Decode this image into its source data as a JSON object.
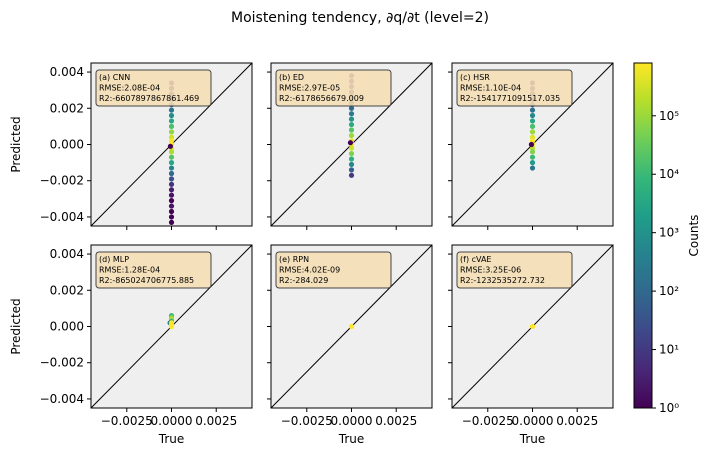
{
  "chart_data": {
    "type": "scatter",
    "title": "Moistening tendency, ∂q/∂t (level=2)",
    "xlabel": "True",
    "ylabel": "Predicted",
    "xlim": [
      -0.0045,
      0.0045
    ],
    "ylim": [
      -0.0045,
      0.0045
    ],
    "x_ticks": [
      -0.0025,
      0.0,
      0.0025
    ],
    "x_tick_labels": [
      "−0.0025",
      "0.0000",
      "0.0025"
    ],
    "y_ticks": [
      -0.004,
      -0.002,
      0.0,
      0.002,
      0.004
    ],
    "y_tick_labels": [
      "−0.004",
      "−0.002",
      "0.000",
      "0.002",
      "0.004"
    ],
    "colorbar": {
      "label": "Counts",
      "scale": "log",
      "range": [
        1,
        800000
      ],
      "colors": [
        "#440154",
        "#482878",
        "#3e4989",
        "#31688e",
        "#26828e",
        "#1f9e89",
        "#35b779",
        "#6ece58",
        "#b5de2b",
        "#fde725"
      ],
      "ticks": [
        {
          "value": 1,
          "label": "10⁰"
        },
        {
          "value": 10,
          "label": "10¹"
        },
        {
          "value": 100,
          "label": "10²"
        },
        {
          "value": 1000,
          "label": "10³"
        },
        {
          "value": 10000,
          "label": "10⁴"
        },
        {
          "value": 100000,
          "label": "10⁵"
        }
      ]
    },
    "panels": [
      {
        "id": "cnn",
        "name": "(a) CNN",
        "rmse": "RMSE:2.08E-04",
        "r2": "R2:-6607897867861.469",
        "points": [
          [
            0.0,
            0.0034,
            3
          ],
          [
            0.0,
            0.0031,
            3
          ],
          [
            0.0,
            0.0028,
            5
          ],
          [
            0.0,
            0.0025,
            20
          ],
          [
            0.0,
            0.0022,
            60
          ],
          [
            0.0,
            0.0019,
            200
          ],
          [
            0.0,
            0.0016,
            800
          ],
          [
            0.0,
            0.0013,
            3000
          ],
          [
            0.0,
            0.001,
            15000
          ],
          [
            0.0,
            0.0007,
            80000
          ],
          [
            0.0,
            0.0004,
            300000
          ],
          [
            0.0,
            0.0002,
            700000
          ],
          [
            0.0,
            0.0,
            800000
          ],
          [
            0.0,
            -0.0002,
            500000
          ],
          [
            0.0,
            -0.0004,
            150000
          ],
          [
            -6e-05,
            -0.0001,
            1
          ],
          [
            0.0,
            -0.0007,
            20000
          ],
          [
            0.0,
            -0.001,
            3000
          ],
          [
            0.0,
            -0.0013,
            500
          ],
          [
            0.0,
            -0.0016,
            100
          ],
          [
            0.0,
            -0.0019,
            30
          ],
          [
            0.0,
            -0.0022,
            8
          ],
          [
            0.0,
            -0.0025,
            3
          ],
          [
            0.0,
            -0.0028,
            2
          ],
          [
            0.0,
            -0.0031,
            1
          ],
          [
            0.0,
            -0.0034,
            2
          ],
          [
            0.0,
            -0.0037,
            1
          ],
          [
            0.0,
            -0.004,
            1
          ],
          [
            0.0,
            -0.0043,
            1
          ]
        ]
      },
      {
        "id": "ed",
        "name": "(b) ED",
        "rmse": "RMSE:2.97E-05",
        "r2": "R2:-6178656679.009",
        "points": [
          [
            0.0,
            0.0038,
            4
          ],
          [
            0.0,
            0.0035,
            4
          ],
          [
            0.0,
            0.0032,
            6
          ],
          [
            0.0,
            0.0029,
            10
          ],
          [
            0.0,
            0.0026,
            20
          ],
          [
            0.0,
            0.0023,
            40
          ],
          [
            0.0,
            0.002,
            100
          ],
          [
            0.0,
            0.0017,
            300
          ],
          [
            0.0,
            0.0014,
            1000
          ],
          [
            0.0,
            0.0011,
            4000
          ],
          [
            0.0,
            0.0008,
            20000
          ],
          [
            0.0,
            0.0005,
            100000
          ],
          [
            0.0,
            0.0002,
            500000
          ],
          [
            0.0,
            0.0,
            800000
          ],
          [
            0.0,
            -0.0002,
            300000
          ],
          [
            -6e-05,
            0.0001,
            1
          ],
          [
            0.0,
            -0.0005,
            50000
          ],
          [
            0.0,
            -0.0008,
            5000
          ],
          [
            0.0,
            -0.0011,
            500
          ],
          [
            0.0,
            -0.0014,
            60
          ],
          [
            0.0,
            -0.0017,
            10
          ]
        ]
      },
      {
        "id": "hsr",
        "name": "(c) HSR",
        "rmse": "RMSE:1.10E-04",
        "r2": "R2:-1541771091517.035",
        "points": [
          [
            0.0,
            0.0034,
            3
          ],
          [
            0.0,
            0.0031,
            4
          ],
          [
            0.0,
            0.0028,
            6
          ],
          [
            0.0,
            0.0025,
            15
          ],
          [
            0.0,
            0.0022,
            40
          ],
          [
            0.0,
            0.0019,
            150
          ],
          [
            0.0,
            0.0016,
            600
          ],
          [
            0.0,
            0.0013,
            3000
          ],
          [
            0.0,
            0.001,
            15000
          ],
          [
            0.0,
            0.0007,
            100000
          ],
          [
            0.0,
            0.0004,
            400000
          ],
          [
            0.0,
            0.0002,
            800000
          ],
          [
            0.0,
            0.0,
            600000
          ],
          [
            0.0,
            -0.0002,
            200000
          ],
          [
            0.0,
            -0.0004,
            60000
          ],
          [
            -6e-05,
            0.0,
            1
          ],
          [
            0.0,
            -0.0007,
            10000
          ],
          [
            0.0,
            -0.001,
            1500
          ],
          [
            0.0,
            -0.0013,
            200
          ]
        ]
      },
      {
        "id": "mlp",
        "name": "(d) MLP",
        "rmse": "RMSE:1.28E-04",
        "r2": "R2:-865024706775.885",
        "points": [
          [
            0.0,
            0.0006,
            10000
          ],
          [
            0.0,
            0.0005,
            50000
          ],
          [
            0.0,
            0.0004,
            200000
          ],
          [
            0.0,
            0.0003,
            10000
          ],
          [
            -8e-05,
            0.0002,
            300
          ],
          [
            0.0,
            0.0002,
            800000
          ],
          [
            0.0,
            0.0001,
            600000
          ],
          [
            0.0,
            0.0,
            800000
          ]
        ]
      },
      {
        "id": "rpn",
        "name": "(e) RPN",
        "rmse": "RMSE:4.02E-09",
        "r2": "R2:-284.029",
        "points": [
          [
            0.0,
            0.0,
            800000
          ]
        ]
      },
      {
        "id": "cvae",
        "name": "(f) cVAE",
        "rmse": "RMSE:3.25E-06",
        "r2": "R2:-1232535272.732",
        "points": [
          [
            0.0,
            0.0,
            800000
          ]
        ]
      }
    ]
  }
}
